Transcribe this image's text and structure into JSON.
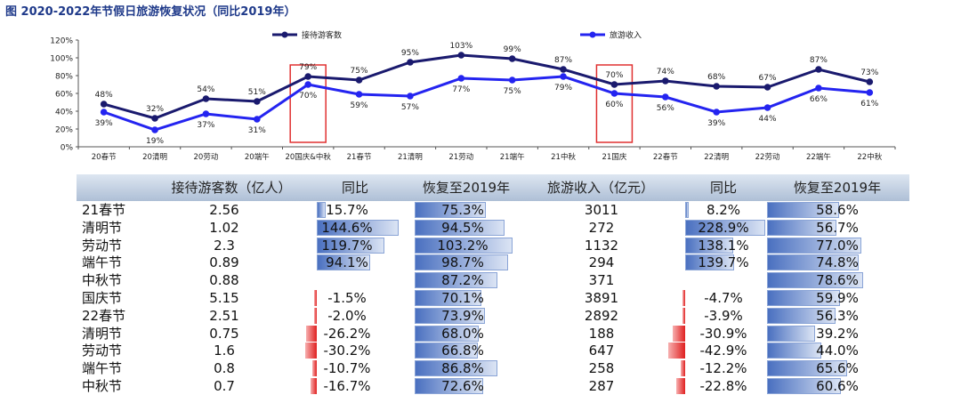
{
  "title": "图 2020-2022年节假日旅游恢复状况（同比2019年）",
  "chart_data": [
    {
      "type": "line",
      "categories": [
        "20春节",
        "20清明",
        "20劳动",
        "20端午",
        "20国庆&中秋",
        "21春节",
        "21清明",
        "21劳动",
        "21端午",
        "21中秋",
        "21国庆",
        "22春节",
        "22清明",
        "22劳动",
        "22端午",
        "22中秋"
      ],
      "series": [
        {
          "name": "接待游客数",
          "color": "#1a1a6e",
          "values": [
            48,
            32,
            54,
            51,
            79,
            75,
            95,
            103,
            99,
            87,
            70,
            74,
            68,
            67,
            87,
            73
          ],
          "labels": [
            "48%",
            "32%",
            "54%",
            "51%",
            "79%",
            "75%",
            "95%",
            "103%",
            "99%",
            "87%",
            "70%",
            "74%",
            "68%",
            "67%",
            "87%",
            "73%"
          ]
        },
        {
          "name": "旅游收入",
          "color": "#2424f0",
          "values": [
            39,
            19,
            37,
            31,
            70,
            59,
            57,
            77,
            75,
            79,
            60,
            56,
            39,
            44,
            66,
            61
          ],
          "labels": [
            "39%",
            "19%",
            "37%",
            "31%",
            "70%",
            "59%",
            "57%",
            "77%",
            "75%",
            "79%",
            "60%",
            "56%",
            "39%",
            "44%",
            "66%",
            "61%"
          ]
        }
      ],
      "y_ticks": [
        "0%",
        "20%",
        "40%",
        "60%",
        "80%",
        "100%",
        "120%"
      ],
      "ylim": [
        0,
        120
      ],
      "highlight_boxes": [
        "20国庆&中秋",
        "21国庆"
      ],
      "legend_position": "top"
    },
    {
      "type": "table",
      "columns": [
        "",
        "接待游客数（亿人）",
        "同比",
        "恢复至2019年",
        "旅游收入（亿元）",
        "同比",
        "恢复至2019年"
      ],
      "rows": [
        {
          "name": "21春节",
          "visitors": "2.56",
          "v_yoy": "15.7%",
          "v_yoy_val": 15.7,
          "v_rec": "75.3%",
          "v_rec_val": 75.3,
          "revenue": "3011",
          "r_yoy": "8.2%",
          "r_yoy_val": 8.2,
          "r_rec": "58.6%",
          "r_rec_val": 58.6
        },
        {
          "name": "清明节",
          "visitors": "1.02",
          "v_yoy": "144.6%",
          "v_yoy_val": 144.6,
          "v_rec": "94.5%",
          "v_rec_val": 94.5,
          "revenue": "272",
          "r_yoy": "228.9%",
          "r_yoy_val": 228.9,
          "r_rec": "56.7%",
          "r_rec_val": 56.7
        },
        {
          "name": "劳动节",
          "visitors": "2.3",
          "v_yoy": "119.7%",
          "v_yoy_val": 119.7,
          "v_rec": "103.2%",
          "v_rec_val": 103.2,
          "revenue": "1132",
          "r_yoy": "138.1%",
          "r_yoy_val": 138.1,
          "r_rec": "77.0%",
          "r_rec_val": 77.0
        },
        {
          "name": "端午节",
          "visitors": "0.89",
          "v_yoy": "94.1%",
          "v_yoy_val": 94.1,
          "v_rec": "98.7%",
          "v_rec_val": 98.7,
          "revenue": "294",
          "r_yoy": "139.7%",
          "r_yoy_val": 139.7,
          "r_rec": "74.8%",
          "r_rec_val": 74.8
        },
        {
          "name": "中秋节",
          "visitors": "0.88",
          "v_yoy": "",
          "v_yoy_val": null,
          "v_rec": "87.2%",
          "v_rec_val": 87.2,
          "revenue": "371",
          "r_yoy": "",
          "r_yoy_val": null,
          "r_rec": "78.6%",
          "r_rec_val": 78.6
        },
        {
          "name": "国庆节",
          "visitors": "5.15",
          "v_yoy": "-1.5%",
          "v_yoy_val": -1.5,
          "v_rec": "70.1%",
          "v_rec_val": 70.1,
          "revenue": "3891",
          "r_yoy": "-4.7%",
          "r_yoy_val": -4.7,
          "r_rec": "59.9%",
          "r_rec_val": 59.9
        },
        {
          "name": "22春节",
          "visitors": "2.51",
          "v_yoy": "-2.0%",
          "v_yoy_val": -2.0,
          "v_rec": "73.9%",
          "v_rec_val": 73.9,
          "revenue": "2892",
          "r_yoy": "-3.9%",
          "r_yoy_val": -3.9,
          "r_rec": "56.3%",
          "r_rec_val": 56.3
        },
        {
          "name": "清明节",
          "visitors": "0.75",
          "v_yoy": "-26.2%",
          "v_yoy_val": -26.2,
          "v_rec": "68.0%",
          "v_rec_val": 68.0,
          "revenue": "188",
          "r_yoy": "-30.9%",
          "r_yoy_val": -30.9,
          "r_rec": "39.2%",
          "r_rec_val": 39.2
        },
        {
          "name": "劳动节",
          "visitors": "1.6",
          "v_yoy": "-30.2%",
          "v_yoy_val": -30.2,
          "v_rec": "66.8%",
          "v_rec_val": 66.8,
          "revenue": "647",
          "r_yoy": "-42.9%",
          "r_yoy_val": -42.9,
          "r_rec": "44.0%",
          "r_rec_val": 44.0
        },
        {
          "name": "端午节",
          "visitors": "0.8",
          "v_yoy": "-10.7%",
          "v_yoy_val": -10.7,
          "v_rec": "86.8%",
          "v_rec_val": 86.8,
          "revenue": "258",
          "r_yoy": "-12.2%",
          "r_yoy_val": -12.2,
          "r_rec": "65.6%",
          "r_rec_val": 65.6
        },
        {
          "name": "中秋节",
          "visitors": "0.7",
          "v_yoy": "-16.7%",
          "v_yoy_val": -16.7,
          "v_rec": "72.6%",
          "v_rec_val": 72.6,
          "revenue": "287",
          "r_yoy": "-22.8%",
          "r_yoy_val": -22.8,
          "r_rec": "60.6%",
          "r_rec_val": 60.6
        }
      ]
    }
  ]
}
